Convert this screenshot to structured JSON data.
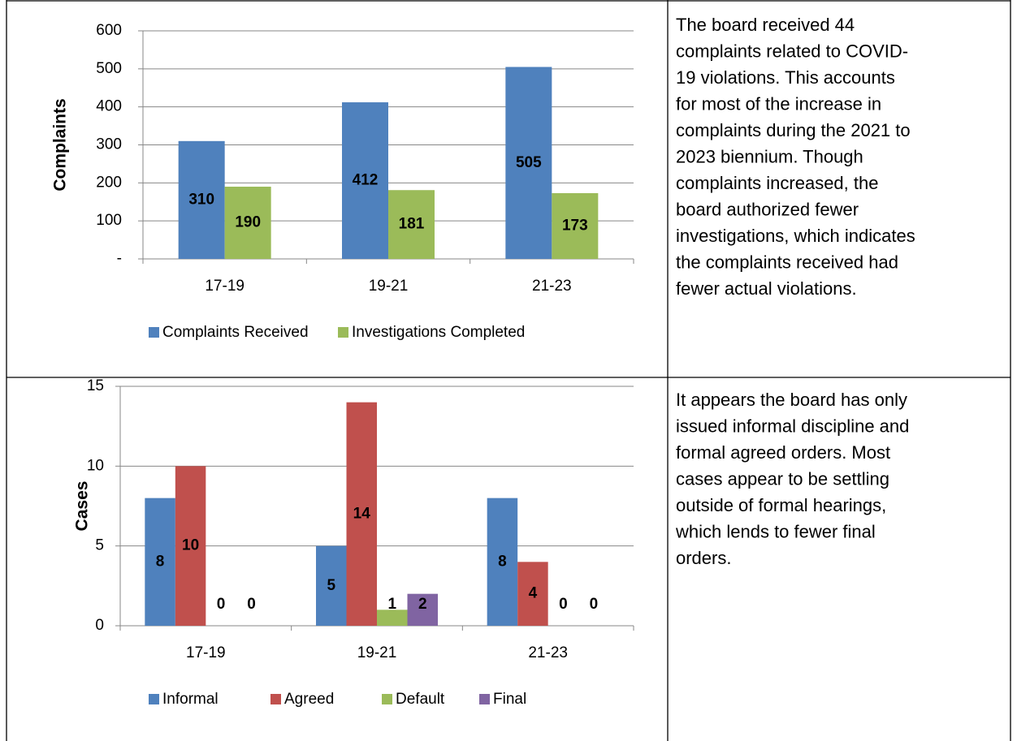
{
  "chart_data": [
    {
      "type": "bar",
      "ylabel": "Complaints",
      "categories": [
        "17-19",
        "19-21",
        "21-23"
      ],
      "ylim": [
        0,
        600
      ],
      "yticks": [
        {
          "value": 0,
          "label": "-"
        },
        100,
        200,
        300,
        400,
        500,
        600
      ],
      "grid": true,
      "legend": "bottom",
      "series": [
        {
          "name": "Complaints Received",
          "color": "#4f81bd",
          "values": [
            310,
            412,
            505
          ]
        },
        {
          "name": "Investigations Completed",
          "color": "#9bbb59",
          "values": [
            190,
            181,
            173
          ]
        }
      ]
    },
    {
      "type": "bar",
      "ylabel": "Cases",
      "categories": [
        "17-19",
        "19-21",
        "21-23"
      ],
      "ylim": [
        0,
        15
      ],
      "yticks": [
        0,
        5,
        10,
        15
      ],
      "grid": true,
      "legend": "bottom",
      "series": [
        {
          "name": "Informal",
          "color": "#4f81bd",
          "values": [
            8,
            5,
            8
          ]
        },
        {
          "name": "Agreed",
          "color": "#c0504d",
          "values": [
            10,
            14,
            4
          ]
        },
        {
          "name": "Default",
          "color": "#9bbb59",
          "values": [
            0,
            1,
            0
          ]
        },
        {
          "name": "Final",
          "color": "#8064a2",
          "values": [
            0,
            2,
            0
          ]
        }
      ]
    }
  ],
  "notes": [
    [
      "The board received 44",
      "complaints related to COVID-",
      "19 violations. This accounts",
      "for most of the increase in",
      "complaints during the 2021 to",
      "2023 biennium. Though",
      "complaints increased, the",
      "board authorized fewer",
      "investigations, which indicates",
      "the complaints received had",
      "fewer actual violations."
    ],
    [
      "It appears the board has only",
      "issued informal discipline and",
      "formal agreed orders. Most",
      "cases appear to be settling",
      "outside of formal hearings,",
      "which lends to fewer final",
      "orders."
    ]
  ]
}
